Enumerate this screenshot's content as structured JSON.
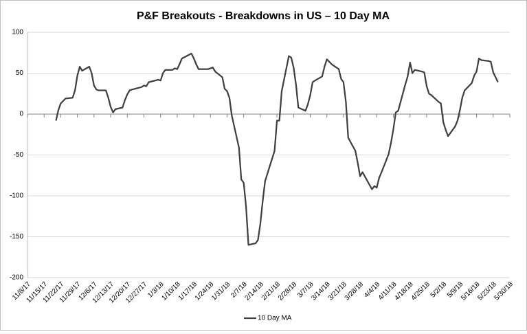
{
  "chart_data": {
    "type": "line",
    "title": "P&F Breakouts - Breakdowns in US – 10 Day MA",
    "x": [
      "11/20/17",
      "11/21/17",
      "11/22/17",
      "11/24/17",
      "11/27/17",
      "11/28/17",
      "11/29/17",
      "11/30/17",
      "12/1/17",
      "12/4/17",
      "12/5/17",
      "12/6/17",
      "12/7/17",
      "12/8/17",
      "12/11/17",
      "12/12/17",
      "12/13/17",
      "12/14/17",
      "12/15/17",
      "12/18/17",
      "12/19/17",
      "12/20/17",
      "12/21/17",
      "12/22/17",
      "12/26/17",
      "12/27/17",
      "12/28/17",
      "12/29/17",
      "1/2/18",
      "1/3/18",
      "1/4/18",
      "1/5/18",
      "1/8/18",
      "1/9/18",
      "1/10/18",
      "1/11/18",
      "1/12/18",
      "1/16/18",
      "1/17/18",
      "1/18/18",
      "1/19/18",
      "1/22/18",
      "1/23/18",
      "1/24/18",
      "1/25/18",
      "1/26/18",
      "1/29/18",
      "1/30/18",
      "1/31/18",
      "2/1/18",
      "2/2/18",
      "2/5/18",
      "2/6/18",
      "2/7/18",
      "2/8/18",
      "2/9/18",
      "2/12/18",
      "2/13/18",
      "2/14/18",
      "2/15/18",
      "2/16/18",
      "2/20/18",
      "2/21/18",
      "2/22/18",
      "2/23/18",
      "2/26/18",
      "2/27/18",
      "2/28/18",
      "3/1/18",
      "3/2/18",
      "3/5/18",
      "3/6/18",
      "3/7/18",
      "3/8/18",
      "3/9/18",
      "3/12/18",
      "3/13/18",
      "3/14/18",
      "3/15/18",
      "3/16/18",
      "3/19/18",
      "3/20/18",
      "3/21/18",
      "3/22/18",
      "3/23/18",
      "3/26/18",
      "3/27/18",
      "3/28/18",
      "3/29/18",
      "4/2/18",
      "4/3/18",
      "4/4/18",
      "4/5/18",
      "4/6/18",
      "4/9/18",
      "4/10/18",
      "4/11/18",
      "4/12/18",
      "4/13/18",
      "4/16/18",
      "4/17/18",
      "4/18/18",
      "4/19/18",
      "4/20/18",
      "4/23/18",
      "4/24/18",
      "4/25/18",
      "4/26/18",
      "4/27/18",
      "4/30/18",
      "5/1/18",
      "5/2/18",
      "5/3/18",
      "5/4/18",
      "5/7/18",
      "5/8/18",
      "5/9/18",
      "5/10/18",
      "5/11/18",
      "5/14/18",
      "5/15/18",
      "5/16/18",
      "5/17/18",
      "5/18/18",
      "5/21/18",
      "5/22/18",
      "5/23/18",
      "5/24/18",
      "5/25/18"
    ],
    "series": [
      {
        "name": "10 Day MA",
        "color": "#404040",
        "values": [
          -8,
          5,
          13,
          19,
          20,
          29,
          47,
          58,
          53,
          58,
          50,
          35,
          30,
          29,
          29,
          20,
          9,
          2,
          6,
          8,
          17,
          24,
          29,
          30,
          33,
          35,
          34,
          39,
          42,
          41,
          50,
          54,
          54,
          56,
          55,
          61,
          68,
          74,
          68,
          61,
          55,
          55,
          55,
          56,
          57,
          52,
          45,
          31,
          28,
          20,
          -2,
          -41,
          -80,
          -84,
          -113,
          -160,
          -158,
          -154,
          -134,
          -106,
          -82,
          -45,
          -8,
          -8,
          28,
          71,
          69,
          57,
          36,
          8,
          4,
          12,
          23,
          39,
          41,
          46,
          58,
          67,
          64,
          61,
          55,
          43,
          39,
          15,
          -29,
          -45,
          -60,
          -76,
          -71,
          -92,
          -88,
          -90,
          -78,
          -71,
          -49,
          -35,
          -18,
          2,
          4,
          36,
          46,
          63,
          50,
          54,
          52,
          51,
          34,
          25,
          23,
          15,
          13,
          -10,
          -19,
          -27,
          -15,
          -8,
          5,
          20,
          29,
          38,
          47,
          52,
          68,
          66,
          65,
          64,
          51,
          45,
          39
        ]
      }
    ],
    "xlim": [
      "11/8/17",
      "5/30/18"
    ],
    "xticks": [
      "11/8/17",
      "11/15/17",
      "11/22/17",
      "11/29/17",
      "12/6/17",
      "12/13/17",
      "12/20/17",
      "12/27/17",
      "1/3/18",
      "1/10/18",
      "1/17/18",
      "1/24/18",
      "1/31/18",
      "2/7/18",
      "2/14/18",
      "2/21/18",
      "2/28/18",
      "3/7/18",
      "3/14/18",
      "3/21/18",
      "3/28/18",
      "4/4/18",
      "4/11/18",
      "4/18/18",
      "4/25/18",
      "5/2/18",
      "5/9/18",
      "5/16/18",
      "5/23/18",
      "5/30/18"
    ],
    "ylim": [
      -200,
      100
    ],
    "yticks": [
      -200,
      -150,
      -100,
      -50,
      0,
      50,
      100
    ],
    "grid": true,
    "legend": "bottom"
  }
}
